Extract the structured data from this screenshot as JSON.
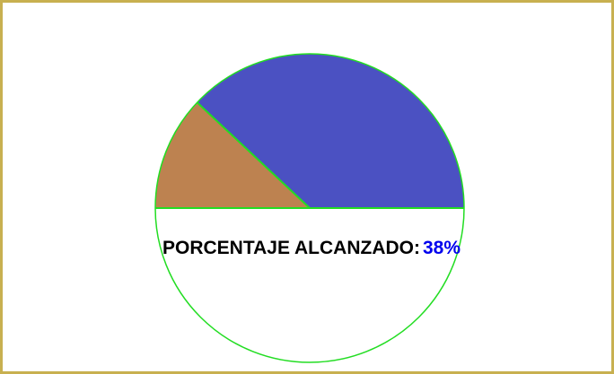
{
  "chart_data": {
    "type": "pie",
    "label": "PORCENTAJE ALCANZADO:",
    "value_text": "38%",
    "value": 38,
    "segments": [
      {
        "name": "",
        "fraction": 0.38,
        "color": "#4b51c2"
      },
      {
        "name": "",
        "fraction": 0.12,
        "color": "#bd8250"
      },
      {
        "name": "",
        "fraction": 0.5,
        "color": "#ffffff"
      }
    ],
    "style": {
      "outline_color": "#22dd22",
      "value_color": "#0000ee",
      "border_color": "#c8b050"
    }
  }
}
